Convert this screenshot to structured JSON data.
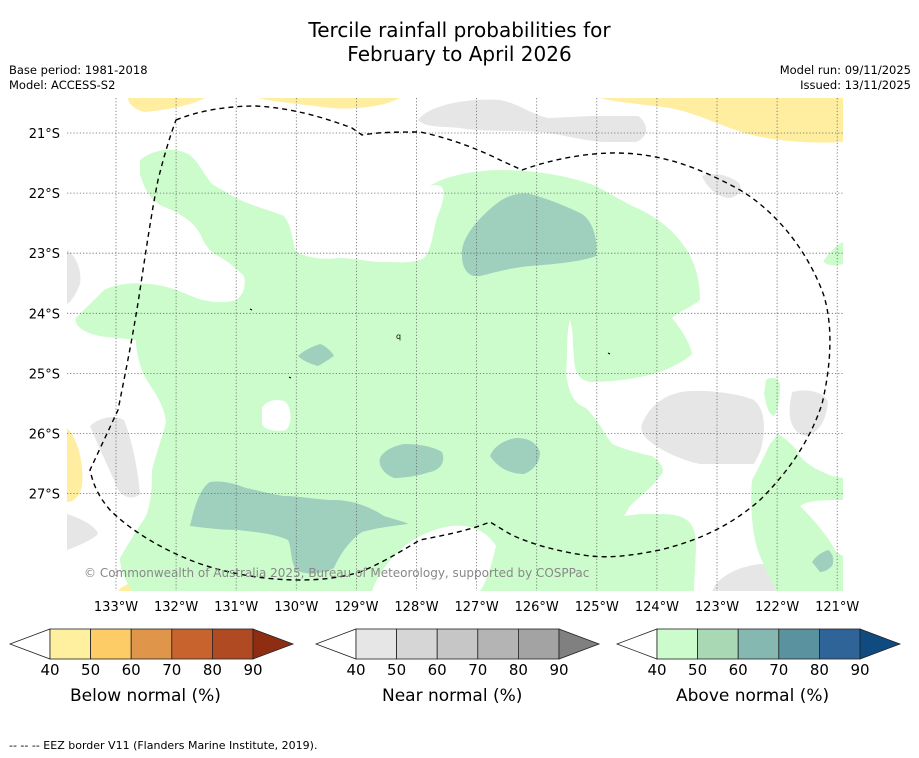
{
  "title_line1": "Tercile rainfall probabilities for",
  "title_line2": "February to April 2026",
  "base_period": "Base period: 1981-2018",
  "model": "Model: ACCESS-S2",
  "model_run": "Model run: 09/11/2025",
  "issued": "Issued: 13/11/2025",
  "copyright": "© Commonwealth of Australia 2025, Bureau of Meteorology, supported by COSPPac",
  "lat_labels": [
    "21°S",
    "22°S",
    "23°S",
    "24°S",
    "25°S",
    "26°S",
    "27°S"
  ],
  "lon_labels": [
    "133°W",
    "132°W",
    "131°W",
    "130°W",
    "129°W",
    "128°W",
    "127°W",
    "126°W",
    "125°W",
    "124°W",
    "123°W",
    "122°W",
    "121°W"
  ],
  "colorbars": [
    {
      "label": "Below normal (%)",
      "ticks": [
        "40",
        "50",
        "60",
        "70",
        "80",
        "90"
      ],
      "colors": [
        "#ffffff",
        "#fff0a0",
        "#fdcc66",
        "#e0964a",
        "#c8632e",
        "#b04a22",
        "#8e2d12"
      ]
    },
    {
      "label": "Near normal (%)",
      "ticks": [
        "40",
        "50",
        "60",
        "70",
        "80",
        "90"
      ],
      "colors": [
        "#ffffff",
        "#e6e6e6",
        "#d6d6d6",
        "#c6c6c6",
        "#b4b4b4",
        "#a3a3a3",
        "#808080"
      ]
    },
    {
      "label": "Above normal (%)",
      "ticks": [
        "40",
        "50",
        "60",
        "70",
        "80",
        "90"
      ],
      "colors": [
        "#ffffff",
        "#ccfccc",
        "#a8d8b4",
        "#84b8b0",
        "#5a92a0",
        "#2e6498",
        "#0f4a80"
      ]
    }
  ],
  "colors": {
    "below_light": "#ffeda0",
    "near_light": "#e6e6e6",
    "above_light": "#ccfccc",
    "above_mid": "#9fcfbd"
  },
  "footer": "-- -- -- EEZ border V11 (Flanders Marine Institute, 2019)."
}
